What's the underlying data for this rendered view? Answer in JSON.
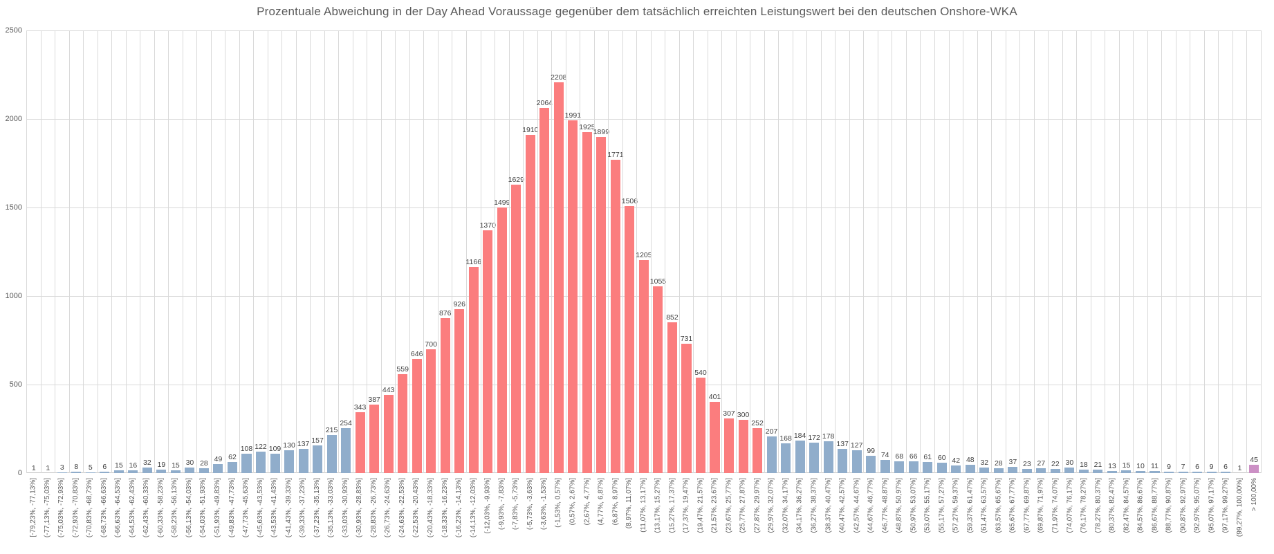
{
  "title": "Prozentuale Abweichung in der Day Ahead Voraussage gegenüber dem tatsächlich erreichten Leistungswert bei den deutschen Onshore-WKA",
  "palette": {
    "blue": "#90adcb",
    "red": "#fb7d7e",
    "purple": "#cc90c5",
    "gridline": "#d9d9d9",
    "axis_line": "#c6c6c6",
    "value_label": "#404040",
    "tick_label": "#595959",
    "title_color": "#595959"
  },
  "chart_data": {
    "type": "bar",
    "title": "Prozentuale Abweichung in der Day Ahead Voraussage gegenüber dem tatsächlich erreichten Leistungswert bei den deutschen Onshore-WKA",
    "xlabel": "",
    "ylabel": "",
    "ylim": [
      0,
      2500
    ],
    "yticks": [
      0,
      500,
      1000,
      1500,
      2000,
      2500
    ],
    "grid": true,
    "legend": false,
    "categories": [
      "[-79,23%, -77,13%]",
      "(-77,13%, -75,03%]",
      "(-75,03%, -72,93%]",
      "(-72,93%, -70,83%]",
      "(-70,83%, -68,73%]",
      "(-68,73%, -66,63%]",
      "(-66,63%, -64,53%]",
      "(-64,53%, -62,43%]",
      "(-62,43%, -60,33%]",
      "(-60,33%, -58,23%]",
      "(-58,23%, -56,13%]",
      "(-56,13%, -54,03%]",
      "(-54,03%, -51,93%]",
      "(-51,93%, -49,83%]",
      "(-49,83%, -47,73%]",
      "(-47,73%, -45,63%]",
      "(-45,63%, -43,53%]",
      "(-43,53%, -41,43%]",
      "(-41,43%, -39,33%]",
      "(-39,33%, -37,23%]",
      "(-37,23%, -35,13%]",
      "(-35,13%, -33,03%]",
      "(-33,03%, -30,93%]",
      "(-30,93%, -28,83%]",
      "(-28,83%, -26,73%]",
      "(-26,73%, -24,63%]",
      "(-24,63%, -22,53%]",
      "(-22,53%, -20,43%]",
      "(-20,43%, -18,33%]",
      "(-18,33%, -16,23%]",
      "(-16,23%, -14,13%]",
      "(-14,13%, -12,03%]",
      "(-12,03%, -9,93%]",
      "(-9,93%, -7,83%]",
      "(-7,83%, -5,73%]",
      "(-5,73%, -3,63%]",
      "(-3,63%, -1,53%]",
      "(-1,53%, 0,57%]",
      "(0,57%, 2,67%]",
      "(2,67%, 4,77%]",
      "(4,77%, 6,87%]",
      "(6,87%, 8,97%]",
      "(8,97%, 11,07%]",
      "(11,07%, 13,17%]",
      "(13,17%, 15,27%]",
      "(15,27%, 17,37%]",
      "(17,37%, 19,47%]",
      "(19,47%, 21,57%]",
      "(21,57%, 23,67%]",
      "(23,67%, 25,77%]",
      "(25,77%, 27,87%]",
      "(27,87%, 29,97%]",
      "(29,97%, 32,07%]",
      "(32,07%, 34,17%]",
      "(34,17%, 36,27%]",
      "(36,27%, 38,37%]",
      "(38,37%, 40,47%]",
      "(40,47%, 42,57%]",
      "(42,57%, 44,67%]",
      "(44,67%, 46,77%]",
      "(46,77%, 48,87%]",
      "(48,87%, 50,97%]",
      "(50,97%, 53,07%]",
      "(53,07%, 55,17%]",
      "(55,17%, 57,27%]",
      "(57,27%, 59,37%]",
      "(59,37%, 61,47%]",
      "(61,47%, 63,57%]",
      "(63,57%, 65,67%]",
      "(65,67%, 67,77%]",
      "(67,77%, 69,87%]",
      "(69,87%, 71,97%]",
      "(71,97%, 74,07%]",
      "(74,07%, 76,17%]",
      "(76,17%, 78,27%]",
      "(78,27%, 80,37%]",
      "(80,37%, 82,47%]",
      "(82,47%, 84,57%]",
      "(84,57%, 86,67%]",
      "(86,67%, 88,77%]",
      "(88,77%, 90,87%]",
      "(90,87%, 92,97%]",
      "(92,97%, 95,07%]",
      "(95,07%, 97,17%]",
      "(97,17%, 99,27%]",
      "(99,27%, 100,00%]",
      "> 100,00%"
    ],
    "values": [
      1,
      1,
      3,
      8,
      5,
      6,
      15,
      16,
      32,
      19,
      15,
      30,
      28,
      49,
      62,
      108,
      122,
      109,
      130,
      137,
      157,
      215,
      254,
      343,
      387,
      443,
      559,
      646,
      700,
      876,
      926,
      1166,
      1370,
      1499,
      1629,
      1910,
      2064,
      2208,
      1991,
      1925,
      1899,
      1771,
      1506,
      1205,
      1055,
      852,
      731,
      540,
      401,
      307,
      300,
      252,
      207,
      168,
      184,
      172,
      178,
      137,
      127,
      99,
      74,
      68,
      66,
      61,
      60,
      42,
      48,
      32,
      28,
      37,
      23,
      27,
      22,
      30,
      18,
      21,
      13,
      15,
      10,
      11,
      9,
      7,
      6,
      9,
      6,
      1,
      45
    ],
    "bar_colors": [
      "blue",
      "blue",
      "blue",
      "blue",
      "blue",
      "blue",
      "blue",
      "blue",
      "blue",
      "blue",
      "blue",
      "blue",
      "blue",
      "blue",
      "blue",
      "blue",
      "blue",
      "blue",
      "blue",
      "blue",
      "blue",
      "blue",
      "blue",
      "red",
      "red",
      "red",
      "red",
      "red",
      "red",
      "red",
      "red",
      "red",
      "red",
      "red",
      "red",
      "red",
      "red",
      "red",
      "red",
      "red",
      "red",
      "red",
      "red",
      "red",
      "red",
      "red",
      "red",
      "red",
      "red",
      "red",
      "red",
      "red",
      "blue",
      "blue",
      "blue",
      "blue",
      "blue",
      "blue",
      "blue",
      "blue",
      "blue",
      "blue",
      "blue",
      "blue",
      "blue",
      "blue",
      "blue",
      "blue",
      "blue",
      "blue",
      "blue",
      "blue",
      "blue",
      "blue",
      "blue",
      "blue",
      "blue",
      "blue",
      "blue",
      "blue",
      "blue",
      "blue",
      "blue",
      "blue",
      "blue",
      "blue",
      "purple"
    ]
  }
}
